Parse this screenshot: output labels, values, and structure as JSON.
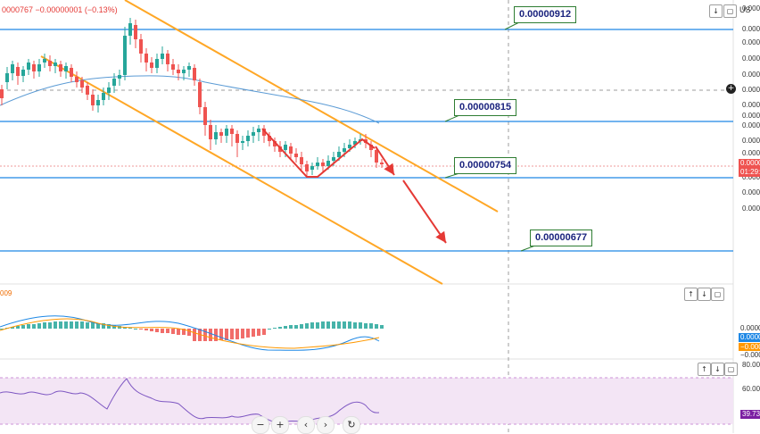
{
  "header": {
    "change_text": "0000767  −0.00000001 (−0.13%)",
    "currency": "US",
    "macd_label": "009"
  },
  "colors": {
    "up": "#26a69a",
    "down": "#ef5350",
    "level_line": "#1e88e5",
    "channel": "#ffa726",
    "arrow": "#e53935",
    "ma_line": "#5b9bd5",
    "rsi_band": "#f3e5f5",
    "rsi_line": "#7e57c2",
    "macd_line": "#1e88e5",
    "signal_line": "#ff9800"
  },
  "chart_data": [
    {
      "type": "line",
      "panel": "price",
      "description_source": "candlestick chart with moving average, descending channel and marked levels",
      "levels": [
        {
          "value": "0.00000912"
        },
        {
          "value": "0.00000815"
        },
        {
          "value": "0.00000754"
        },
        {
          "value": "0.00000677"
        }
      ],
      "axis_labels": [
        "0.0000",
        "0.0000",
        "0.0000",
        "0.0000",
        "0.0000",
        "0.0000",
        "0.0000",
        "0.0000",
        "0.0000",
        "0.0000",
        "0.0000",
        "0.0000",
        "0.0000",
        "0.0000",
        "0.0000"
      ],
      "current_price_tag": "0.0000",
      "countdown_tag": "01:29:",
      "ylim": [
        6.4e-06,
        9.6e-06
      ]
    },
    {
      "type": "bar",
      "panel": "macd",
      "axis_labels": [
        "0.0000",
        "0.0000",
        "−0.000",
        "−0.000",
        "−0.0000"
      ]
    },
    {
      "type": "line",
      "panel": "rsi",
      "axis_labels": [
        "80.00",
        "60.00",
        "40.00"
      ],
      "current_value": "39.73",
      "ylim": [
        30,
        85
      ]
    }
  ],
  "controls": {
    "zoom_out": "−",
    "zoom_in": "+",
    "scroll_left": "‹",
    "scroll_right": "›",
    "reset": "↻",
    "up": "↑",
    "down": "↓",
    "maximize": "▢",
    "collapse_down": "↓",
    "plus_circle": "+"
  }
}
